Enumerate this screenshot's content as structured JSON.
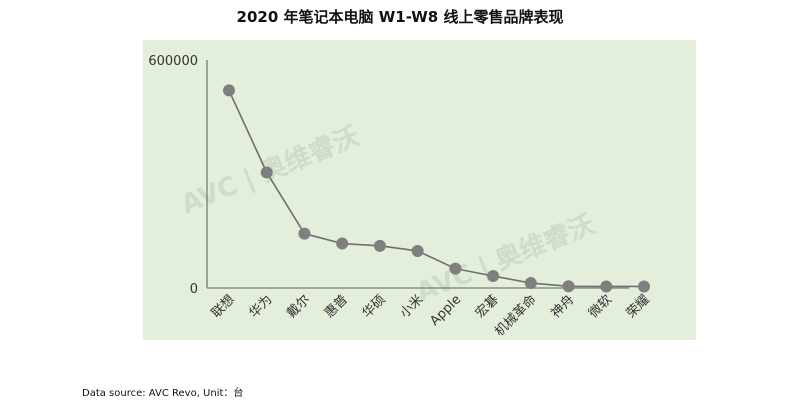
{
  "chart_data": {
    "type": "line",
    "title": "2020 年笔记本电脑 W1-W8 线上零售品牌表现",
    "categories": [
      "联想",
      "华为",
      "戴尔",
      "惠普",
      "华硕",
      "小米",
      "Apple",
      "宏碁",
      "机械革命",
      "神舟",
      "微软",
      "荣耀"
    ],
    "values": [
      520000,
      304000,
      143000,
      117000,
      111000,
      97500,
      51000,
      31600,
      13000,
      4500,
      4000,
      4000
    ],
    "ylim": [
      0,
      600000
    ],
    "yticks": [
      "0",
      "600000"
    ],
    "grid": false,
    "legend": "none",
    "colors": {
      "line": "#6f6f6f",
      "marker": "#7f7f7f",
      "background": "#e3eedb"
    }
  },
  "watermark": "AVC | 奥维睿沃",
  "footer": "Data source: AVC Revo,    Unit：台"
}
